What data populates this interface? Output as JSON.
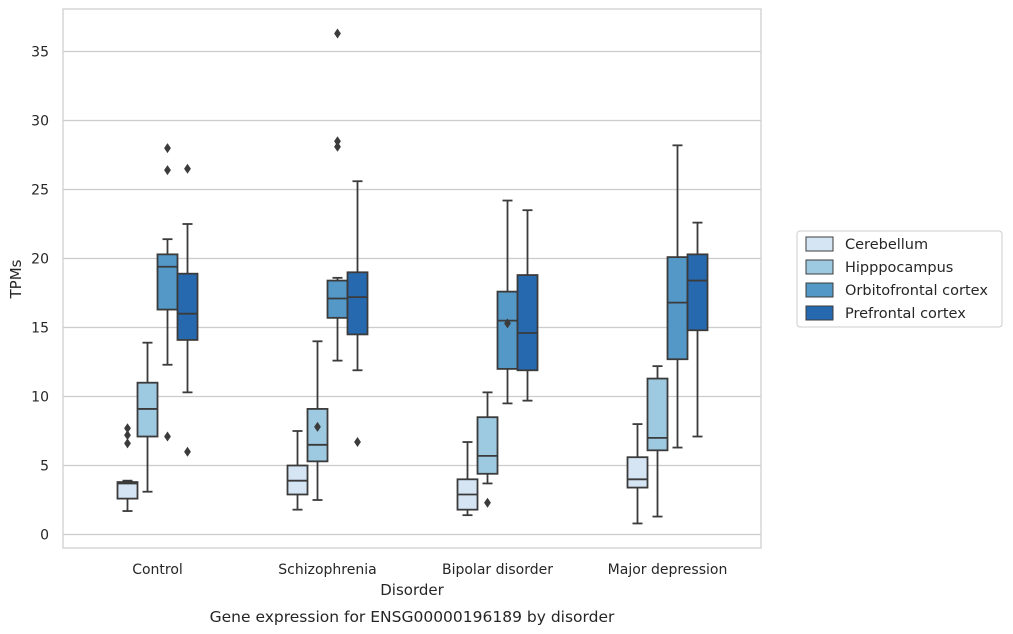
{
  "chart_data": {
    "type": "box",
    "title": "",
    "caption": "Gene expression for ENSG00000196189 by disorder",
    "xlabel": "Disorder",
    "ylabel": "TPMs",
    "ylim": [
      -1,
      38
    ],
    "yticks": [
      0,
      5,
      10,
      15,
      20,
      25,
      30,
      35
    ],
    "grid": "horizontal",
    "legend_position": "right",
    "categories": [
      "Control",
      "Schizophrenia",
      "Bipolar disorder",
      "Major depression"
    ],
    "series": [
      {
        "name": "Cerebellum",
        "color": "#d6e5f4",
        "boxes": [
          {
            "whislo": 1.7,
            "q1": 2.6,
            "med": 3.7,
            "q3": 3.8,
            "whishi": 3.9,
            "fliers": [
              6.6,
              7.2,
              7.7
            ]
          },
          {
            "whislo": 1.8,
            "q1": 2.9,
            "med": 3.9,
            "q3": 5.0,
            "whishi": 7.5,
            "fliers": []
          },
          {
            "whislo": 1.4,
            "q1": 1.8,
            "med": 2.9,
            "q3": 4.0,
            "whishi": 6.7,
            "fliers": []
          },
          {
            "whislo": 0.8,
            "q1": 3.4,
            "med": 4.0,
            "q3": 5.6,
            "whishi": 8.0,
            "fliers": []
          }
        ]
      },
      {
        "name": "Hipppocampus",
        "color": "#9dc9e1",
        "boxes": [
          {
            "whislo": 3.1,
            "q1": 7.1,
            "med": 9.1,
            "q3": 11.0,
            "whishi": 13.9,
            "fliers": []
          },
          {
            "whislo": 2.5,
            "q1": 5.3,
            "med": 6.5,
            "q3": 9.1,
            "whishi": 14.0,
            "fliers": [
              7.8
            ]
          },
          {
            "whislo": 3.7,
            "q1": 4.4,
            "med": 5.7,
            "q3": 8.5,
            "whishi": 10.3,
            "fliers": [
              2.3
            ]
          },
          {
            "whislo": 1.3,
            "q1": 6.1,
            "med": 7.0,
            "q3": 11.3,
            "whishi": 12.2,
            "fliers": []
          }
        ]
      },
      {
        "name": "Orbitofrontal cortex",
        "color": "#5398c7",
        "boxes": [
          {
            "whislo": 12.3,
            "q1": 16.3,
            "med": 19.4,
            "q3": 20.3,
            "whishi": 21.4,
            "fliers": [
              7.1,
              26.4,
              28.0
            ]
          },
          {
            "whislo": 12.6,
            "q1": 15.7,
            "med": 17.1,
            "q3": 18.4,
            "whishi": 18.6,
            "fliers": [
              28.1,
              28.5,
              36.3
            ]
          },
          {
            "whislo": 9.5,
            "q1": 12.0,
            "med": 15.5,
            "q3": 17.6,
            "whishi": 24.2,
            "fliers": [
              15.3
            ]
          },
          {
            "whislo": 6.3,
            "q1": 12.7,
            "med": 16.8,
            "q3": 20.1,
            "whishi": 28.2,
            "fliers": []
          }
        ]
      },
      {
        "name": "Prefrontal cortex",
        "color": "#2669ae",
        "boxes": [
          {
            "whislo": 10.3,
            "q1": 14.1,
            "med": 16.0,
            "q3": 18.9,
            "whishi": 22.5,
            "fliers": [
              6.0,
              26.5
            ]
          },
          {
            "whislo": 11.9,
            "q1": 14.5,
            "med": 17.2,
            "q3": 19.0,
            "whishi": 25.6,
            "fliers": [
              6.7
            ]
          },
          {
            "whislo": 9.7,
            "q1": 11.9,
            "med": 14.6,
            "q3": 18.8,
            "whishi": 23.5,
            "fliers": []
          },
          {
            "whislo": 7.1,
            "q1": 14.8,
            "med": 18.4,
            "q3": 20.3,
            "whishi": 22.6,
            "fliers": []
          }
        ]
      }
    ]
  }
}
